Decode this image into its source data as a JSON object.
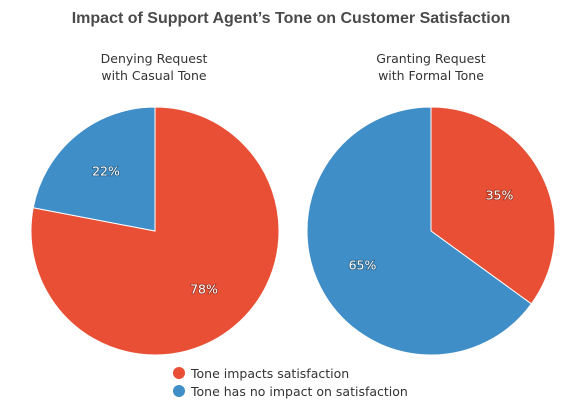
{
  "title": "Impact of Support Agent’s Tone on Customer Satisfaction",
  "colors": {
    "impacts": "#e84f35",
    "no_impact": "#3f8ec8"
  },
  "legend": [
    {
      "label": "Tone impacts satisfaction",
      "color": "#e84f35"
    },
    {
      "label": "Tone has no impact on satisfaction",
      "color": "#3f8ec8"
    }
  ],
  "chart_data": [
    {
      "type": "pie",
      "title_lines": [
        "Denying Request",
        "with Casual Tone"
      ],
      "slices": [
        {
          "label": "Tone impacts satisfaction",
          "value": 78,
          "value_label": "78%",
          "color": "#e84f35"
        },
        {
          "label": "Tone has no impact on satisfaction",
          "value": 22,
          "value_label": "22%",
          "color": "#3f8ec8"
        }
      ]
    },
    {
      "type": "pie",
      "title_lines": [
        "Granting Request",
        "with Formal Tone"
      ],
      "slices": [
        {
          "label": "Tone impacts satisfaction",
          "value": 35,
          "value_label": "35%",
          "color": "#e84f35"
        },
        {
          "label": "Tone has no impact on satisfaction",
          "value": 65,
          "value_label": "65%",
          "color": "#3f8ec8"
        }
      ]
    }
  ]
}
